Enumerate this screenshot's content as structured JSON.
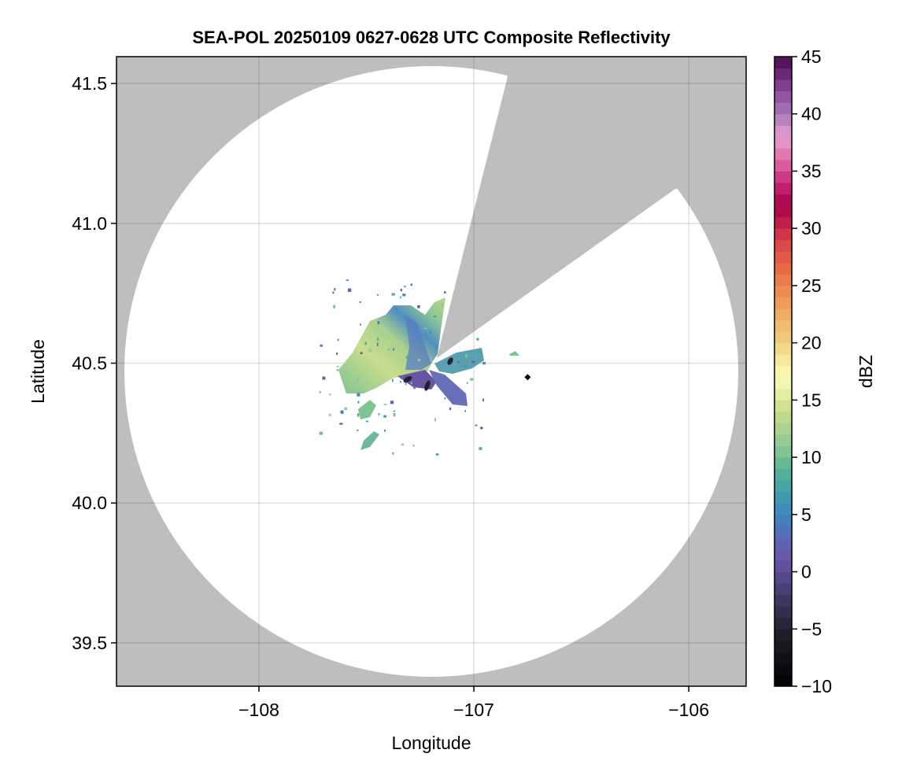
{
  "chart_data": {
    "type": "heatmap",
    "title": "SEA-POL 20250109 0627-0628 UTC Composite Reflectivity",
    "xlabel": "Longitude",
    "ylabel": "Latitude",
    "xlim": [
      -108.663,
      -105.733
    ],
    "ylim": [
      39.345,
      41.596
    ],
    "xticks": [
      -108,
      -107,
      -106
    ],
    "xtick_labels": [
      "−108",
      "−107",
      "−106"
    ],
    "yticks": [
      39.5,
      40.0,
      40.5,
      41.0,
      41.5
    ],
    "ytick_labels": [
      "39.5",
      "40.0",
      "40.5",
      "41.0",
      "41.5"
    ],
    "grid": true,
    "background_color": "#bebebe",
    "radar_site": {
      "lon": -107.2,
      "lat": 40.49
    },
    "marker": {
      "lon": -106.75,
      "lat": 40.45,
      "shape": "diamond",
      "color": "#000000"
    },
    "colorbar": {
      "label": "dBZ",
      "range": [
        -10,
        45
      ],
      "step": 1,
      "ticks": [
        -10,
        -5,
        0,
        5,
        10,
        15,
        20,
        25,
        30,
        35,
        40,
        45
      ],
      "tick_labels": [
        "−10",
        "−5",
        "0",
        "5",
        "10",
        "15",
        "20",
        "25",
        "30",
        "35",
        "40",
        "45"
      ],
      "color_stops": [
        [
          -10,
          "#000000"
        ],
        [
          -5,
          "#24202e"
        ],
        [
          -1,
          "#4e4280"
        ],
        [
          1,
          "#6a55a4"
        ],
        [
          3,
          "#5a68b8"
        ],
        [
          5,
          "#3d87c0"
        ],
        [
          7,
          "#3fa0a8"
        ],
        [
          9,
          "#5ab494"
        ],
        [
          11,
          "#8ec892"
        ],
        [
          14,
          "#c8dc8c"
        ],
        [
          17,
          "#fbfbb8"
        ],
        [
          20,
          "#f0d280"
        ],
        [
          23,
          "#eea460"
        ],
        [
          26,
          "#ec7444"
        ],
        [
          29,
          "#d8404a"
        ],
        [
          32,
          "#a8004a"
        ],
        [
          34,
          "#c8287a"
        ],
        [
          36,
          "#e06aa8"
        ],
        [
          38,
          "#e6a0d0"
        ],
        [
          40,
          "#a878b8"
        ],
        [
          42,
          "#8a4a98"
        ],
        [
          45,
          "#4a0a4e"
        ]
      ]
    }
  }
}
